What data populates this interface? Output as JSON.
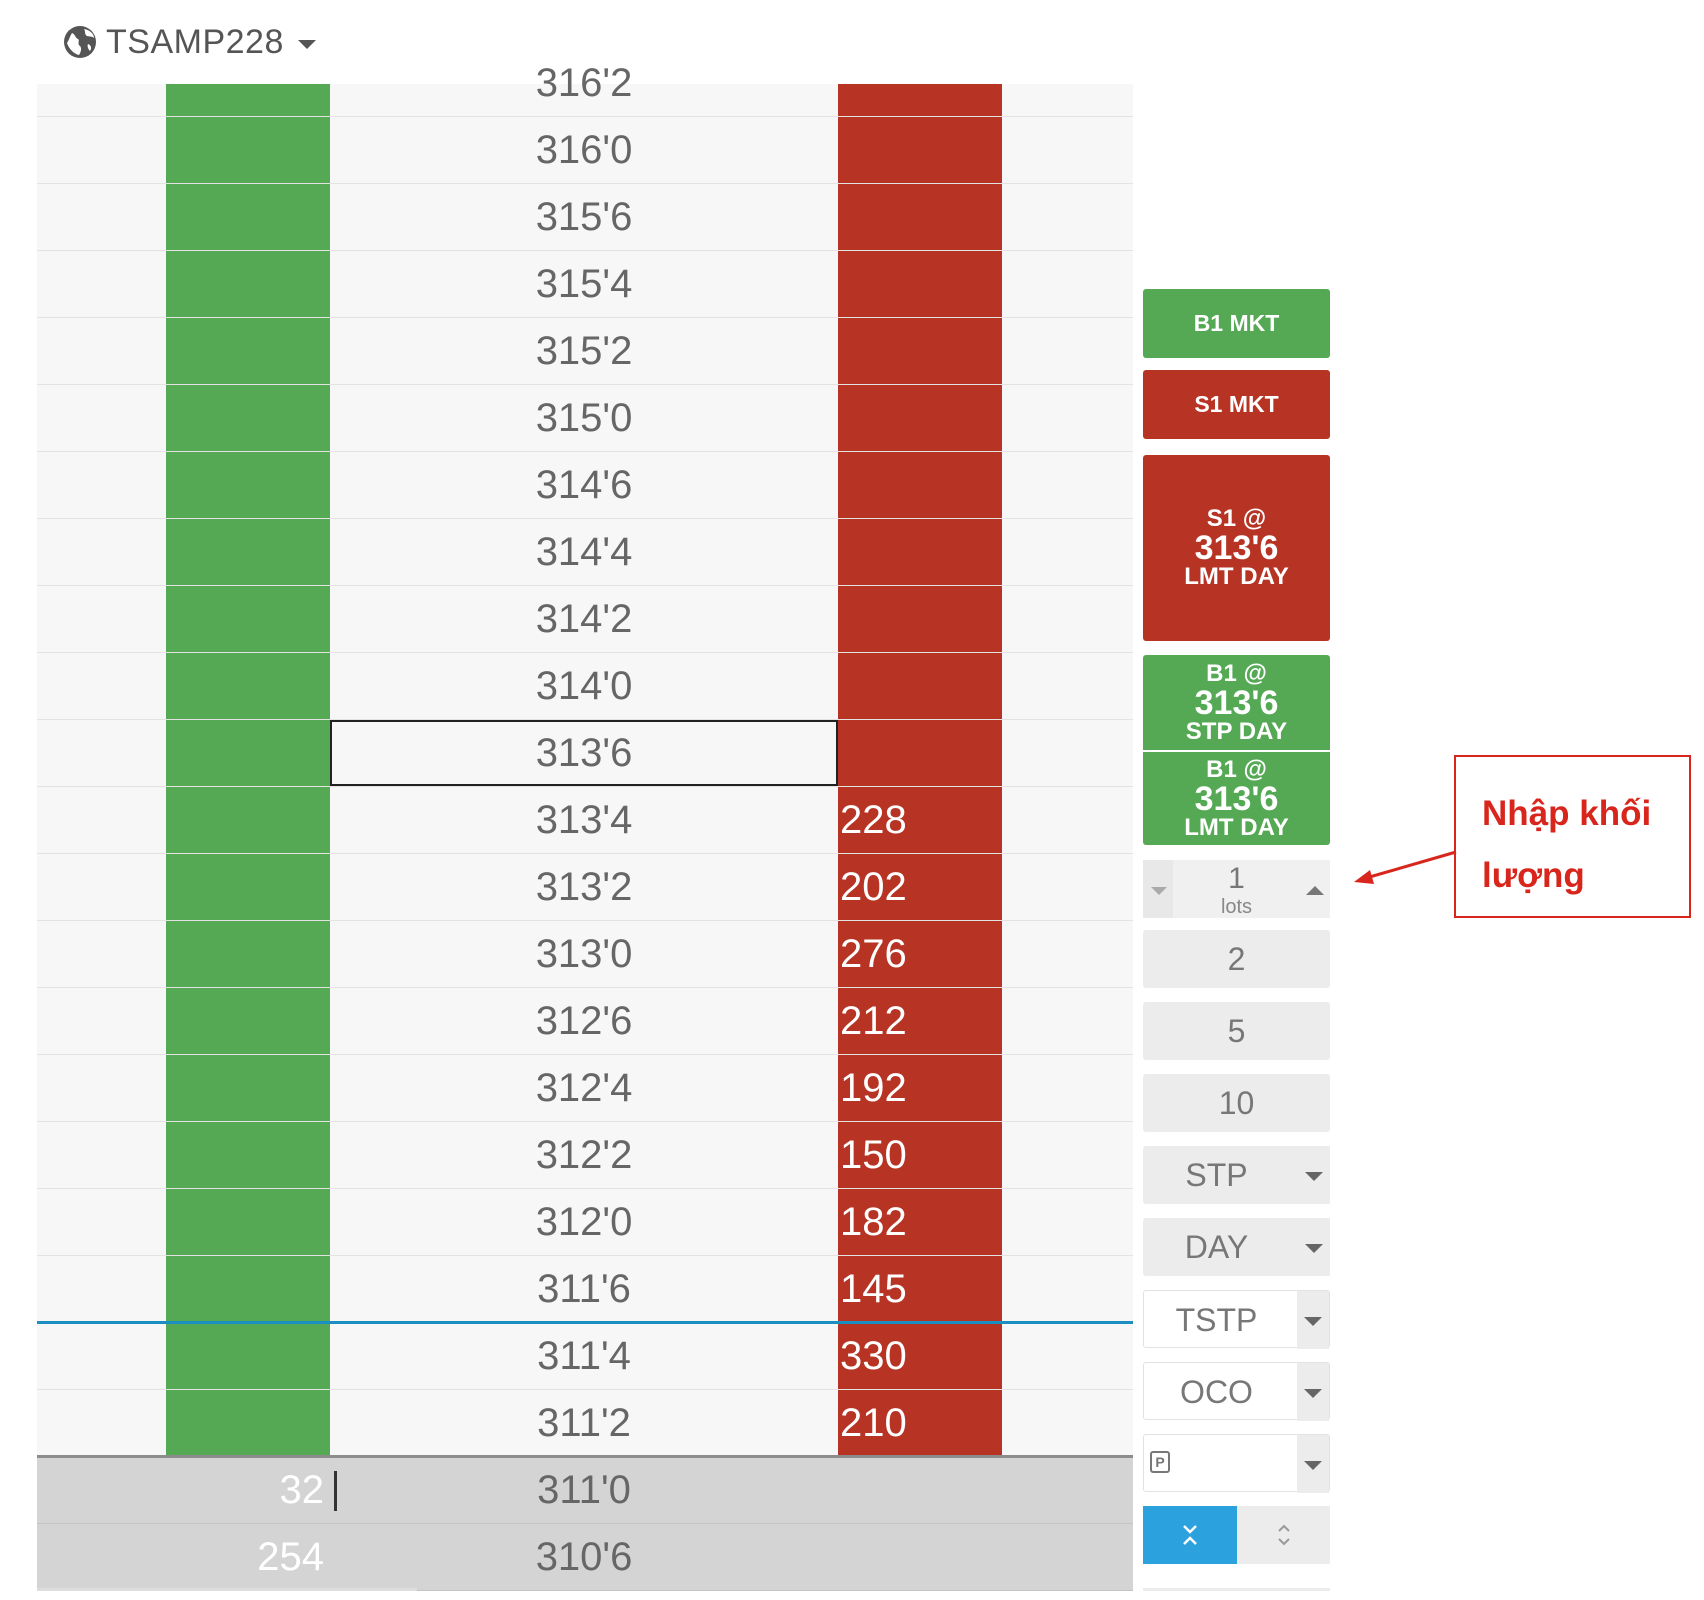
{
  "account": {
    "name": "TSAMP228",
    "icon": "globe-icon"
  },
  "ladder": {
    "top_partial_price": "316'2",
    "rows": [
      {
        "price": "316'0",
        "bid": "",
        "ask": ""
      },
      {
        "price": "315'6",
        "bid": "",
        "ask": ""
      },
      {
        "price": "315'4",
        "bid": "",
        "ask": ""
      },
      {
        "price": "315'2",
        "bid": "",
        "ask": ""
      },
      {
        "price": "315'0",
        "bid": "",
        "ask": ""
      },
      {
        "price": "314'6",
        "bid": "",
        "ask": ""
      },
      {
        "price": "314'4",
        "bid": "",
        "ask": ""
      },
      {
        "price": "314'2",
        "bid": "",
        "ask": ""
      },
      {
        "price": "314'0",
        "bid": "",
        "ask": ""
      },
      {
        "price": "313'6",
        "bid": "",
        "ask": "",
        "selected": true
      },
      {
        "price": "313'4",
        "bid": "",
        "ask": "228"
      },
      {
        "price": "313'2",
        "bid": "",
        "ask": "202"
      },
      {
        "price": "313'0",
        "bid": "",
        "ask": "276"
      },
      {
        "price": "312'6",
        "bid": "",
        "ask": "212"
      },
      {
        "price": "312'4",
        "bid": "",
        "ask": "192"
      },
      {
        "price": "312'2",
        "bid": "",
        "ask": "150"
      },
      {
        "price": "312'0",
        "bid": "",
        "ask": "182"
      },
      {
        "price": "311'6",
        "bid": "",
        "ask": "145"
      },
      {
        "price": "311'4",
        "bid": "",
        "ask": "330",
        "last_trade_above": true
      },
      {
        "price": "311'2",
        "bid": "",
        "ask": "210"
      },
      {
        "price": "311'0",
        "bid": "32",
        "ask": "",
        "shaded": true,
        "separator_above": true,
        "cursor": true
      },
      {
        "price": "310'6",
        "bid": "254",
        "ask": "",
        "shaded": true
      }
    ],
    "colors": {
      "bid": "#55a955",
      "ask": "#b73324",
      "last_trade_line": "#1b8fc2"
    }
  },
  "panel": {
    "buy_market": "B1 MKT",
    "sell_market": "S1 MKT",
    "sell_limit": {
      "line1": "S1 @",
      "price": "313'6",
      "line3": "LMT DAY"
    },
    "buy_stop": {
      "line1": "B1 @",
      "price": "313'6",
      "line3": "STP DAY"
    },
    "buy_limit": {
      "line1": "B1 @",
      "price": "313'6",
      "line3": "LMT DAY"
    },
    "quantity": {
      "value": "1",
      "unit": "lots"
    },
    "quick_qty": [
      "2",
      "5",
      "10"
    ],
    "order_type": "STP",
    "duration": "DAY",
    "trailing": "TSTP",
    "bracket": "OCO",
    "collapse_icon": "collapse-icon",
    "expand_icon": "expand-icon",
    "position_icon": "p-icon"
  },
  "annotation": {
    "line1": "Nhập khối",
    "line2": "lượng",
    "color": "#d9261c"
  }
}
